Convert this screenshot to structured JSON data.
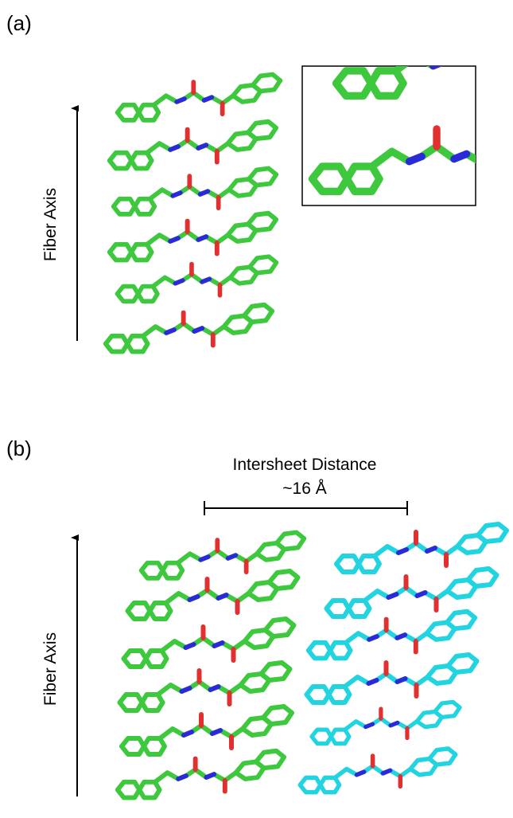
{
  "panel_a": {
    "label": "(a)",
    "axis_label": "Fiber Axis"
  },
  "panel_b": {
    "label": "(b)",
    "axis_label": "Fiber Axis",
    "distance_label": "Intersheet Distance",
    "distance_value": "~16 Å"
  }
}
